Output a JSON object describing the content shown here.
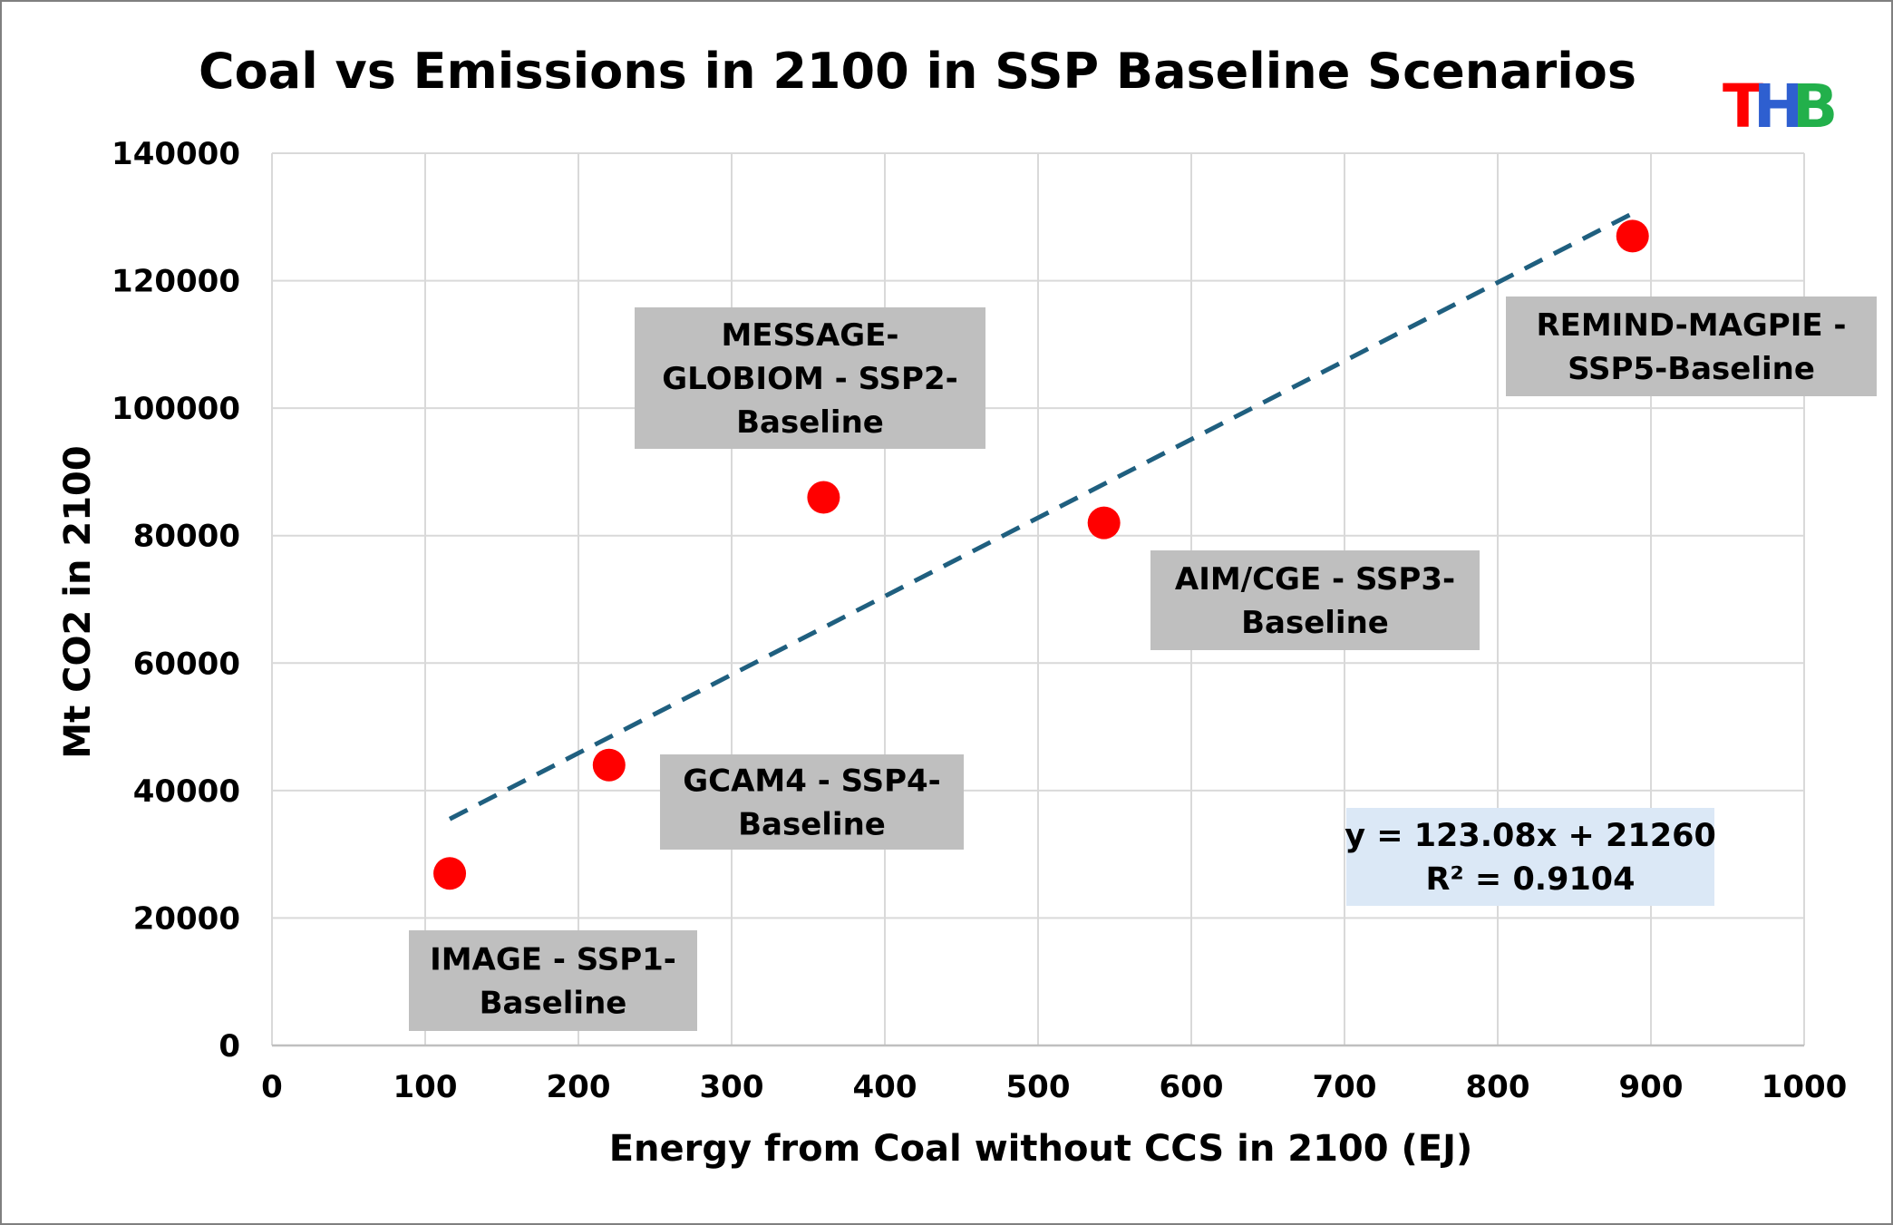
{
  "logo": {
    "letters": [
      "T",
      "H",
      "B"
    ],
    "colors": [
      "#ff0000",
      "#2e5fd0",
      "#22b04b"
    ]
  },
  "chart_data": {
    "type": "scatter",
    "title": "Coal vs Emissions in 2100 in SSP Baseline Scenarios",
    "xlabel": "Energy from Coal without CCS in 2100 (EJ)",
    "ylabel": "Mt CO2 in 2100",
    "xlim": [
      0,
      1000
    ],
    "ylim": [
      0,
      140000
    ],
    "x_ticks": [
      0,
      100,
      200,
      300,
      400,
      500,
      600,
      700,
      800,
      900,
      1000
    ],
    "y_ticks": [
      0,
      20000,
      40000,
      60000,
      80000,
      100000,
      120000,
      140000
    ],
    "grid": true,
    "marker_color": "#ff0000",
    "trendline_color": "#1f5f7f",
    "label_box_color": "#bfbfbf",
    "equation_box_color": "#dbe8f6",
    "points": [
      {
        "x": 116,
        "y": 27000,
        "label_lines": [
          "IMAGE - SSP1-",
          "Baseline"
        ]
      },
      {
        "x": 220,
        "y": 44000,
        "label_lines": [
          "GCAM4 - SSP4-",
          "Baseline"
        ]
      },
      {
        "x": 360,
        "y": 86000,
        "label_lines": [
          "MESSAGE-",
          "GLOBIOM - SSP2-",
          "Baseline"
        ]
      },
      {
        "x": 543,
        "y": 82000,
        "label_lines": [
          "AIM/CGE - SSP3-",
          "Baseline"
        ]
      },
      {
        "x": 888,
        "y": 127000,
        "label_lines": [
          "REMIND-MAGPIE -",
          "SSP5-Baseline"
        ]
      }
    ],
    "trendline": {
      "slope": 123.08,
      "intercept": 21260,
      "x_range": [
        116,
        888
      ],
      "equation_lines": [
        "y = 123.08x + 21260",
        "R² = 0.9104"
      ]
    }
  }
}
